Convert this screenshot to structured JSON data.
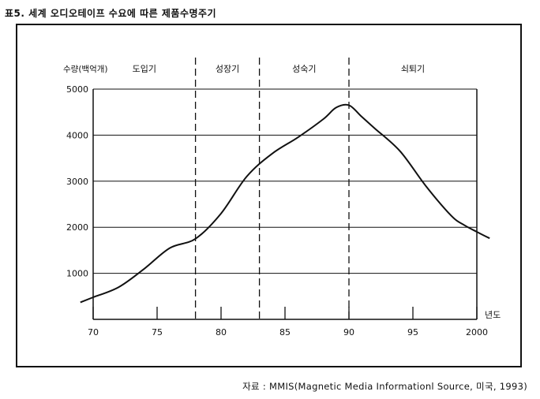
{
  "title": "표5. 세계 오디오테이프 수요에 따른 제품수명주기",
  "source": "자료 : MMIS(Magnetic Media Informationl Source, 미국, 1993)",
  "chart_data": {
    "type": "line",
    "title": "표5. 세계 오디오테이프 수요에 따른 제품수명주기",
    "ylabel": "수량(백억개)",
    "xlabel": "년도",
    "xlim": [
      70,
      2000
    ],
    "ylim": [
      0,
      5000
    ],
    "x_ticks": [
      70,
      75,
      80,
      85,
      90,
      95,
      2000
    ],
    "y_ticks": [
      1000,
      2000,
      3000,
      4000,
      5000
    ],
    "grid": "horizontal",
    "phases": [
      {
        "label": "도입기",
        "start": 70,
        "end": 78
      },
      {
        "label": "성장기",
        "start": 78,
        "end": 83
      },
      {
        "label": "성숙기",
        "start": 83,
        "end": 90
      },
      {
        "label": "쇠퇴기",
        "start": 90,
        "end": 2000
      }
    ],
    "series": [
      {
        "x": [
          69,
          70,
          72,
          74,
          76,
          78,
          80,
          82,
          84,
          86,
          88,
          89,
          90,
          91,
          92,
          94,
          96,
          98,
          99,
          2000,
          2001
        ],
        "values": [
          370,
          480,
          700,
          1100,
          1550,
          1750,
          2300,
          3100,
          3600,
          3950,
          4350,
          4600,
          4650,
          4400,
          4150,
          3650,
          2900,
          2250,
          2050,
          1900,
          1760
        ]
      }
    ]
  }
}
